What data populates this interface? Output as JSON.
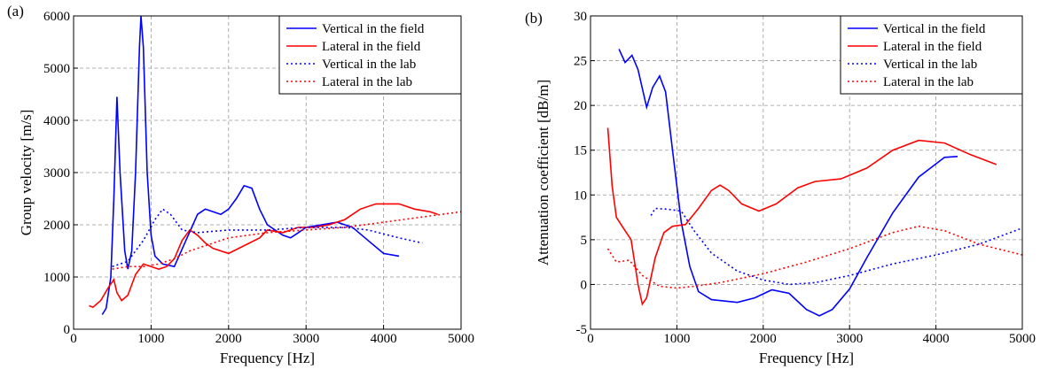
{
  "chart_data": [
    {
      "type": "line",
      "label": "(a)",
      "xlabel": "Frequency [Hz]",
      "ylabel": "Group velocity [m/s]",
      "xlim": [
        0,
        5000
      ],
      "xticks": [
        0,
        1000,
        2000,
        3000,
        4000,
        5000
      ],
      "ylim": [
        0,
        6000
      ],
      "yticks": [
        0,
        1000,
        2000,
        3000,
        4000,
        5000,
        6000
      ],
      "grid": true,
      "legend": "top-right",
      "series": [
        {
          "name": "Vertical in the field",
          "color": "#0000ff",
          "style": "solid",
          "x": [
            370,
            420,
            480,
            520,
            560,
            600,
            660,
            700,
            750,
            800,
            850,
            870,
            900,
            950,
            1000,
            1050,
            1150,
            1300,
            1450,
            1600,
            1700,
            1800,
            1900,
            2000,
            2100,
            2200,
            2300,
            2400,
            2500,
            2600,
            2700,
            2800,
            2900,
            3000,
            3200,
            3400,
            3600,
            3800,
            4000,
            4200
          ],
          "values": [
            280,
            400,
            1000,
            2500,
            4450,
            3000,
            1500,
            1150,
            1500,
            3000,
            5400,
            6000,
            5400,
            3000,
            1800,
            1400,
            1250,
            1200,
            1700,
            2200,
            2300,
            2250,
            2200,
            2300,
            2500,
            2750,
            2700,
            2300,
            2000,
            1900,
            1800,
            1750,
            1850,
            1950,
            2000,
            2050,
            1950,
            1700,
            1450,
            1400
          ]
        },
        {
          "name": "Lateral in the field",
          "color": "#ff0000",
          "style": "solid",
          "x": [
            200,
            250,
            350,
            450,
            520,
            560,
            620,
            700,
            800,
            900,
            1000,
            1100,
            1200,
            1300,
            1400,
            1500,
            1600,
            1700,
            1800,
            2000,
            2200,
            2400,
            2500,
            2700,
            2900,
            3100,
            3300,
            3500,
            3700,
            3900,
            4200,
            4400,
            4600,
            4700
          ],
          "values": [
            450,
            420,
            550,
            800,
            950,
            700,
            550,
            650,
            1050,
            1250,
            1200,
            1150,
            1200,
            1350,
            1700,
            1900,
            1800,
            1650,
            1550,
            1450,
            1600,
            1750,
            1900,
            1850,
            1950,
            1950,
            2000,
            2100,
            2300,
            2400,
            2400,
            2300,
            2250,
            2200
          ]
        },
        {
          "name": "Vertical in the lab",
          "color": "#0000ff",
          "style": "dotted",
          "x": [
            500,
            700,
            900,
            1050,
            1150,
            1250,
            1400,
            1600,
            2000,
            2500,
            3000,
            3500,
            3800,
            4200,
            4500
          ],
          "values": [
            1200,
            1300,
            1700,
            2100,
            2300,
            2200,
            1900,
            1850,
            1900,
            1900,
            1950,
            1950,
            1900,
            1750,
            1650
          ]
        },
        {
          "name": "Lateral in the lab",
          "color": "#ff0000",
          "style": "dotted",
          "x": [
            500,
            700,
            900,
            1100,
            1300,
            1500,
            2000,
            2500,
            3000,
            3500,
            4000,
            4500,
            5000
          ],
          "values": [
            1150,
            1200,
            1200,
            1250,
            1350,
            1500,
            1750,
            1850,
            1900,
            1950,
            2050,
            2150,
            2250
          ]
        }
      ]
    },
    {
      "type": "line",
      "label": "(b)",
      "xlabel": "Frequency [Hz]",
      "ylabel": "Attenuation coefficient [dB/m]",
      "xlim": [
        0,
        5000
      ],
      "xticks": [
        0,
        1000,
        2000,
        3000,
        4000,
        5000
      ],
      "ylim": [
        -5,
        30
      ],
      "yticks": [
        -5,
        0,
        5,
        10,
        15,
        20,
        25,
        30
      ],
      "grid": true,
      "legend": "top-right",
      "series": [
        {
          "name": "Vertical in the field",
          "color": "#0000ff",
          "style": "solid",
          "x": [
            330,
            400,
            480,
            550,
            650,
            720,
            800,
            870,
            950,
            1050,
            1150,
            1250,
            1400,
            1700,
            1900,
            2100,
            2300,
            2500,
            2650,
            2800,
            3000,
            3200,
            3500,
            3800,
            4100,
            4250
          ],
          "values": [
            26.3,
            24.8,
            25.6,
            24,
            19.8,
            22,
            23.3,
            21.5,
            15,
            7,
            2,
            -0.8,
            -1.7,
            -2,
            -1.5,
            -0.6,
            -1,
            -2.8,
            -3.5,
            -2.8,
            -0.5,
            3,
            8,
            12,
            14.2,
            14.3
          ]
        },
        {
          "name": "Lateral in the field",
          "color": "#ff0000",
          "style": "solid",
          "x": [
            200,
            250,
            300,
            400,
            470,
            550,
            600,
            650,
            750,
            850,
            950,
            1100,
            1250,
            1400,
            1500,
            1600,
            1750,
            1950,
            2150,
            2400,
            2600,
            2900,
            3200,
            3500,
            3800,
            4100,
            4400,
            4700
          ],
          "values": [
            17.5,
            11,
            7.5,
            6,
            5,
            0,
            -2.2,
            -1.5,
            3,
            5.8,
            6.5,
            6.7,
            8.5,
            10.5,
            11.1,
            10.5,
            9,
            8.2,
            9,
            10.8,
            11.5,
            11.8,
            13,
            15,
            16.1,
            15.8,
            14.5,
            13.4
          ]
        },
        {
          "name": "Vertical in the lab",
          "color": "#0000ff",
          "style": "dotted",
          "x": [
            700,
            750,
            900,
            1050,
            1200,
            1400,
            1700,
            2000,
            2300,
            2600,
            3000,
            3500,
            4000,
            4500,
            5000
          ],
          "values": [
            7.7,
            8.5,
            8.4,
            8.2,
            6,
            3.5,
            1.5,
            0.5,
            0,
            0.2,
            1,
            2.3,
            3.3,
            4.5,
            6.3
          ]
        },
        {
          "name": "Lateral in the lab",
          "color": "#ff0000",
          "style": "dotted",
          "x": [
            200,
            300,
            450,
            600,
            800,
            1000,
            1200,
            1500,
            2000,
            2500,
            3000,
            3500,
            3800,
            4100,
            4500,
            5000
          ],
          "values": [
            4,
            2.5,
            2.7,
            1,
            -0.2,
            -0.4,
            -0.2,
            0.2,
            1.2,
            2.5,
            4,
            5.8,
            6.5,
            6,
            4.5,
            3.3
          ]
        }
      ]
    }
  ]
}
